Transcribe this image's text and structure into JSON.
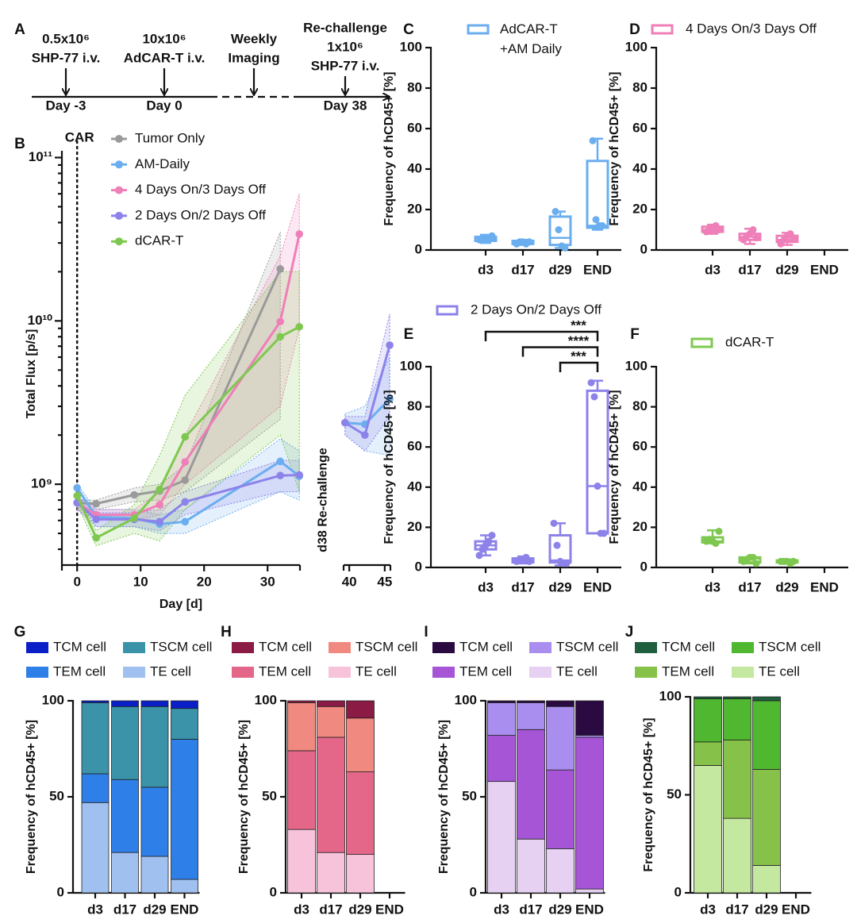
{
  "chart_data": [
    {
      "type": "timeline",
      "panel": "A",
      "events": [
        {
          "lines": [
            "0.5x10⁶",
            "SHP-77 i.v."
          ],
          "day": "Day -3"
        },
        {
          "lines": [
            "10x10⁶",
            "AdCAR-T i.v."
          ],
          "day": "Day 0"
        },
        {
          "lines": [
            "Weekly",
            "Imaging"
          ]
        },
        {
          "lines": [
            "Re-challenge",
            "1x10⁶",
            "SHP-77 i.v."
          ],
          "day": "Day 38"
        }
      ]
    },
    {
      "type": "line",
      "panel": "B",
      "xlabel": "Day [d]",
      "ylabel": "Total Flux [p/s]",
      "log_y": true,
      "ylim": [
        320000000.0,
        110000000000.0
      ],
      "yticks": [
        {
          "value": 1000000000.0,
          "label": "10⁹"
        },
        {
          "value": 10000000000.0,
          "label": "10¹⁰"
        },
        {
          "value": 100000000000.0,
          "label": "10¹¹"
        }
      ],
      "x_segments": [
        {
          "xlim": [
            -2.4,
            35.1
          ],
          "xticks": [
            0,
            10,
            20,
            30
          ]
        },
        {
          "xlim": [
            39.2,
            45.8
          ],
          "xticks": [
            40,
            45
          ]
        }
      ],
      "marker_line": {
        "x": 0,
        "label": "CAR"
      },
      "segment_label": "d38 Re-challenge",
      "series": [
        {
          "name": "Tumor Only",
          "color": "#9a9a9a",
          "x": [
            0,
            3,
            9,
            13,
            17,
            32
          ],
          "values": [
            770000000.0,
            760000000.0,
            860000000.0,
            910000000.0,
            1060000000.0,
            20800000000.0
          ],
          "lower": [
            700000000.0,
            700000000.0,
            780000000.0,
            800000000.0,
            900000000.0,
            2500000000.0
          ],
          "upper": [
            800000000.0,
            800000000.0,
            950000000.0,
            1000000000.0,
            1300000000.0,
            35000000000.0
          ]
        },
        {
          "name": "AM-Daily",
          "color": "#6aaef0",
          "x": [
            0,
            3,
            9,
            13,
            17,
            32,
            35,
            39.4,
            42.2,
            45.7
          ],
          "values": [
            950000000.0,
            630000000.0,
            620000000.0,
            570000000.0,
            590000000.0,
            1380000000.0,
            1120000000.0,
            2380000000.0,
            2330000000.0,
            3330000000.0
          ],
          "lower": [
            800000000.0,
            550000000.0,
            550000000.0,
            500000000.0,
            500000000.0,
            900000000.0,
            800000000.0,
            2000000000.0,
            1600000000.0,
            1500000000.0
          ],
          "upper": [
            1000000000.0,
            700000000.0,
            700000000.0,
            650000000.0,
            700000000.0,
            1900000000.0,
            1600000000.0,
            2700000000.0,
            3000000000.0,
            6000000000.0
          ]
        },
        {
          "name": "4 Days On/3 Days Off",
          "color": "#ef7fb8",
          "x": [
            0,
            3,
            9,
            13,
            17,
            32,
            35
          ],
          "values": [
            770000000.0,
            650000000.0,
            650000000.0,
            750000000.0,
            1370000000.0,
            9900000000.0,
            34000000000.0
          ],
          "lower": [
            700000000.0,
            600000000.0,
            600000000.0,
            650000000.0,
            1000000000.0,
            3000000000.0,
            9000000000.0
          ],
          "upper": [
            850000000.0,
            700000000.0,
            700000000.0,
            900000000.0,
            2000000000.0,
            25000000000.0,
            60000000000.0
          ]
        },
        {
          "name": "2 Days On/2 Days Off",
          "color": "#8c82ea",
          "x": [
            0,
            3,
            9,
            13,
            17,
            32,
            35,
            39.4,
            42.2,
            45.7
          ],
          "values": [
            770000000.0,
            610000000.0,
            610000000.0,
            590000000.0,
            780000000.0,
            1130000000.0,
            1140000000.0,
            2380000000.0,
            2000000000.0,
            7100000000.0
          ],
          "lower": [
            700000000.0,
            550000000.0,
            550000000.0,
            520000000.0,
            650000000.0,
            900000000.0,
            900000000.0,
            2000000000.0,
            1600000000.0,
            2600000000.0
          ],
          "upper": [
            850000000.0,
            670000000.0,
            670000000.0,
            700000000.0,
            900000000.0,
            1400000000.0,
            1400000000.0,
            2600000000.0,
            2600000000.0,
            11000000000.0
          ]
        },
        {
          "name": "dCAR-T",
          "color": "#7ec850",
          "x": [
            0,
            3,
            9,
            13,
            17,
            32,
            35
          ],
          "values": [
            850000000.0,
            470000000.0,
            620000000.0,
            930000000.0,
            1950000000.0,
            8000000000.0,
            9200000000.0
          ],
          "lower": [
            750000000.0,
            420000000.0,
            500000000.0,
            450000000.0,
            700000000.0,
            2000000000.0,
            900000000.0
          ],
          "upper": [
            900000000.0,
            520000000.0,
            750000000.0,
            1500000000.0,
            3500000000.0,
            20000000000.0,
            20000000000.0
          ]
        }
      ]
    },
    {
      "type": "box",
      "panel": "C",
      "ylabel": "Frequency of hCD45+ [%]",
      "ylim": [
        0,
        100
      ],
      "yticks": [
        0,
        20,
        40,
        60,
        80,
        100
      ],
      "categories": [
        "d3",
        "d17",
        "d29",
        "END"
      ],
      "series": [
        {
          "name": "AdCAR-T +AM Daily",
          "color": "#6aaef0",
          "min": [
            3.5,
            2.5,
            1,
            10
          ],
          "q1": [
            4.5,
            3,
            2.5,
            11
          ],
          "median": [
            5.5,
            3.5,
            6,
            12
          ],
          "q3": [
            6.5,
            4.5,
            16.5,
            44
          ],
          "max": [
            7.5,
            5,
            19,
            55
          ],
          "points": [
            [
              5,
              6,
              6,
              5,
              7
            ],
            [
              3,
              4,
              4,
              3,
              4
            ],
            [
              19,
              10,
              2,
              1
            ],
            [
              54,
              15,
              12,
              12
            ]
          ]
        }
      ]
    },
    {
      "type": "box",
      "panel": "D",
      "ylabel": "Frequency of hCD45+ [%]",
      "ylim": [
        0,
        100
      ],
      "yticks": [
        0,
        20,
        40,
        60,
        80,
        100
      ],
      "categories": [
        "d3",
        "d17",
        "d29",
        "END"
      ],
      "series": [
        {
          "name": "4 Days On/3 Days Off",
          "color": "#ef7fb8",
          "min": [
            8,
            3,
            2.5,
            null
          ],
          "q1": [
            9,
            5,
            4,
            null
          ],
          "median": [
            10,
            6.5,
            5,
            null
          ],
          "q3": [
            11.5,
            8,
            7,
            null
          ],
          "max": [
            12.5,
            10.5,
            8.5,
            null
          ],
          "points": [
            [
              9,
              10,
              11,
              12,
              10
            ],
            [
              5,
              7,
              8,
              10,
              6
            ],
            [
              3,
              5,
              7,
              8,
              6
            ],
            []
          ]
        }
      ]
    },
    {
      "type": "box",
      "panel": "E",
      "ylabel": "Frequency of hCD45+ [%]",
      "ylim": [
        0,
        100
      ],
      "yticks": [
        0,
        20,
        40,
        60,
        80,
        100
      ],
      "categories": [
        "d3",
        "d17",
        "d29",
        "END"
      ],
      "series": [
        {
          "name": "2 Days On/2 Days Off",
          "color": "#8c82ea",
          "min": [
            6,
            2,
            1,
            17
          ],
          "q1": [
            9,
            2.5,
            2.5,
            17
          ],
          "median": [
            11,
            3.5,
            3.5,
            40.5
          ],
          "q3": [
            13,
            4.5,
            16,
            88
          ],
          "max": [
            16,
            5.5,
            22,
            93
          ],
          "points": [
            [
              6,
              9,
              11,
              13,
              16
            ],
            [
              3,
              4,
              4,
              5,
              3
            ],
            [
              22,
              11,
              3,
              2,
              2
            ],
            [
              92,
              85,
              40.5,
              17,
              17
            ]
          ]
        }
      ],
      "significance": [
        {
          "from": "d3",
          "to": "END",
          "label": "***"
        },
        {
          "from": "d17",
          "to": "END",
          "label": "****"
        },
        {
          "from": "d29",
          "to": "END",
          "label": "***"
        }
      ]
    },
    {
      "type": "box",
      "panel": "F",
      "ylabel": "Frequency of hCD45+ [%]",
      "ylim": [
        0,
        100
      ],
      "yticks": [
        0,
        20,
        40,
        60,
        80,
        100
      ],
      "categories": [
        "d3",
        "d17",
        "d29",
        "END"
      ],
      "series": [
        {
          "name": "dCAR-T",
          "color": "#7ec850",
          "min": [
            12,
            2,
            2,
            null
          ],
          "q1": [
            12.5,
            2.5,
            2.5,
            null
          ],
          "median": [
            13,
            4.5,
            3,
            null
          ],
          "q3": [
            15,
            5,
            3.5,
            null
          ],
          "max": [
            18.5,
            5,
            4,
            null
          ],
          "points": [
            [
              13,
              14,
              13,
              12,
              18
            ],
            [
              3,
              4,
              5,
              5,
              2
            ],
            [
              3,
              3,
              3,
              2,
              3
            ],
            []
          ]
        }
      ]
    },
    {
      "type": "stacked_bar",
      "panel": "G",
      "ylabel": "Frequency of hCD45+ [%]",
      "ylim": [
        0,
        100
      ],
      "yticks": [
        0,
        50,
        100
      ],
      "categories": [
        "d3",
        "d17",
        "d29",
        "END"
      ],
      "series": [
        {
          "name": "TE cell",
          "color": "#a0c0ef",
          "values": [
            47,
            21,
            19,
            7
          ]
        },
        {
          "name": "TEM cell",
          "color": "#2f7fe8",
          "values": [
            15,
            38,
            36,
            73
          ]
        },
        {
          "name": "TSCM cell",
          "color": "#3a93a8",
          "values": [
            37,
            38,
            42,
            16
          ]
        },
        {
          "name": "TCM cell",
          "color": "#0a1fc8",
          "values": [
            1,
            3,
            3,
            4
          ]
        }
      ]
    },
    {
      "type": "stacked_bar",
      "panel": "H",
      "ylabel": "Frequency of hCD45+ [%]",
      "ylim": [
        0,
        100
      ],
      "yticks": [
        0,
        50,
        100
      ],
      "categories": [
        "d3",
        "d17",
        "d29",
        "END"
      ],
      "series": [
        {
          "name": "TE cell",
          "color": "#f6c3da",
          "values": [
            33,
            21,
            20,
            null
          ]
        },
        {
          "name": "TEM cell",
          "color": "#e4678a",
          "values": [
            41,
            60,
            43,
            null
          ]
        },
        {
          "name": "TSCM cell",
          "color": "#f0897f",
          "values": [
            25,
            16,
            28,
            null
          ]
        },
        {
          "name": "TCM cell",
          "color": "#8b1a45",
          "values": [
            1,
            3,
            9,
            null
          ]
        }
      ]
    },
    {
      "type": "stacked_bar",
      "panel": "I",
      "ylabel": "Frequency of hCD45+ [%]",
      "ylim": [
        0,
        100
      ],
      "yticks": [
        0,
        50,
        100
      ],
      "categories": [
        "d3",
        "d17",
        "d29",
        "END"
      ],
      "series": [
        {
          "name": "TE cell",
          "color": "#e6d1f3",
          "values": [
            58,
            28,
            23,
            2
          ]
        },
        {
          "name": "TEM cell",
          "color": "#a655d6",
          "values": [
            24,
            57,
            41,
            79
          ]
        },
        {
          "name": "TSCM cell",
          "color": "#a98ef0",
          "values": [
            17,
            14,
            33,
            1
          ]
        },
        {
          "name": "TCM cell",
          "color": "#2a0a40",
          "values": [
            1,
            1,
            3,
            18
          ]
        }
      ]
    },
    {
      "type": "stacked_bar",
      "panel": "J",
      "ylabel": "Frequency of hCD45+ [%]",
      "ylim": [
        0,
        100
      ],
      "yticks": [
        0,
        50,
        100
      ],
      "categories": [
        "d3",
        "d17",
        "d29",
        "END"
      ],
      "series": [
        {
          "name": "TE cell",
          "color": "#c5e8a0",
          "values": [
            65,
            38,
            14,
            null
          ]
        },
        {
          "name": "TEM cell",
          "color": "#86c24a",
          "values": [
            12,
            40,
            49,
            null
          ]
        },
        {
          "name": "TSCM cell",
          "color": "#4fb830",
          "values": [
            22,
            21,
            35,
            null
          ]
        },
        {
          "name": "TCM cell",
          "color": "#1f5e3e",
          "values": [
            1,
            1,
            2,
            null
          ]
        }
      ]
    }
  ]
}
